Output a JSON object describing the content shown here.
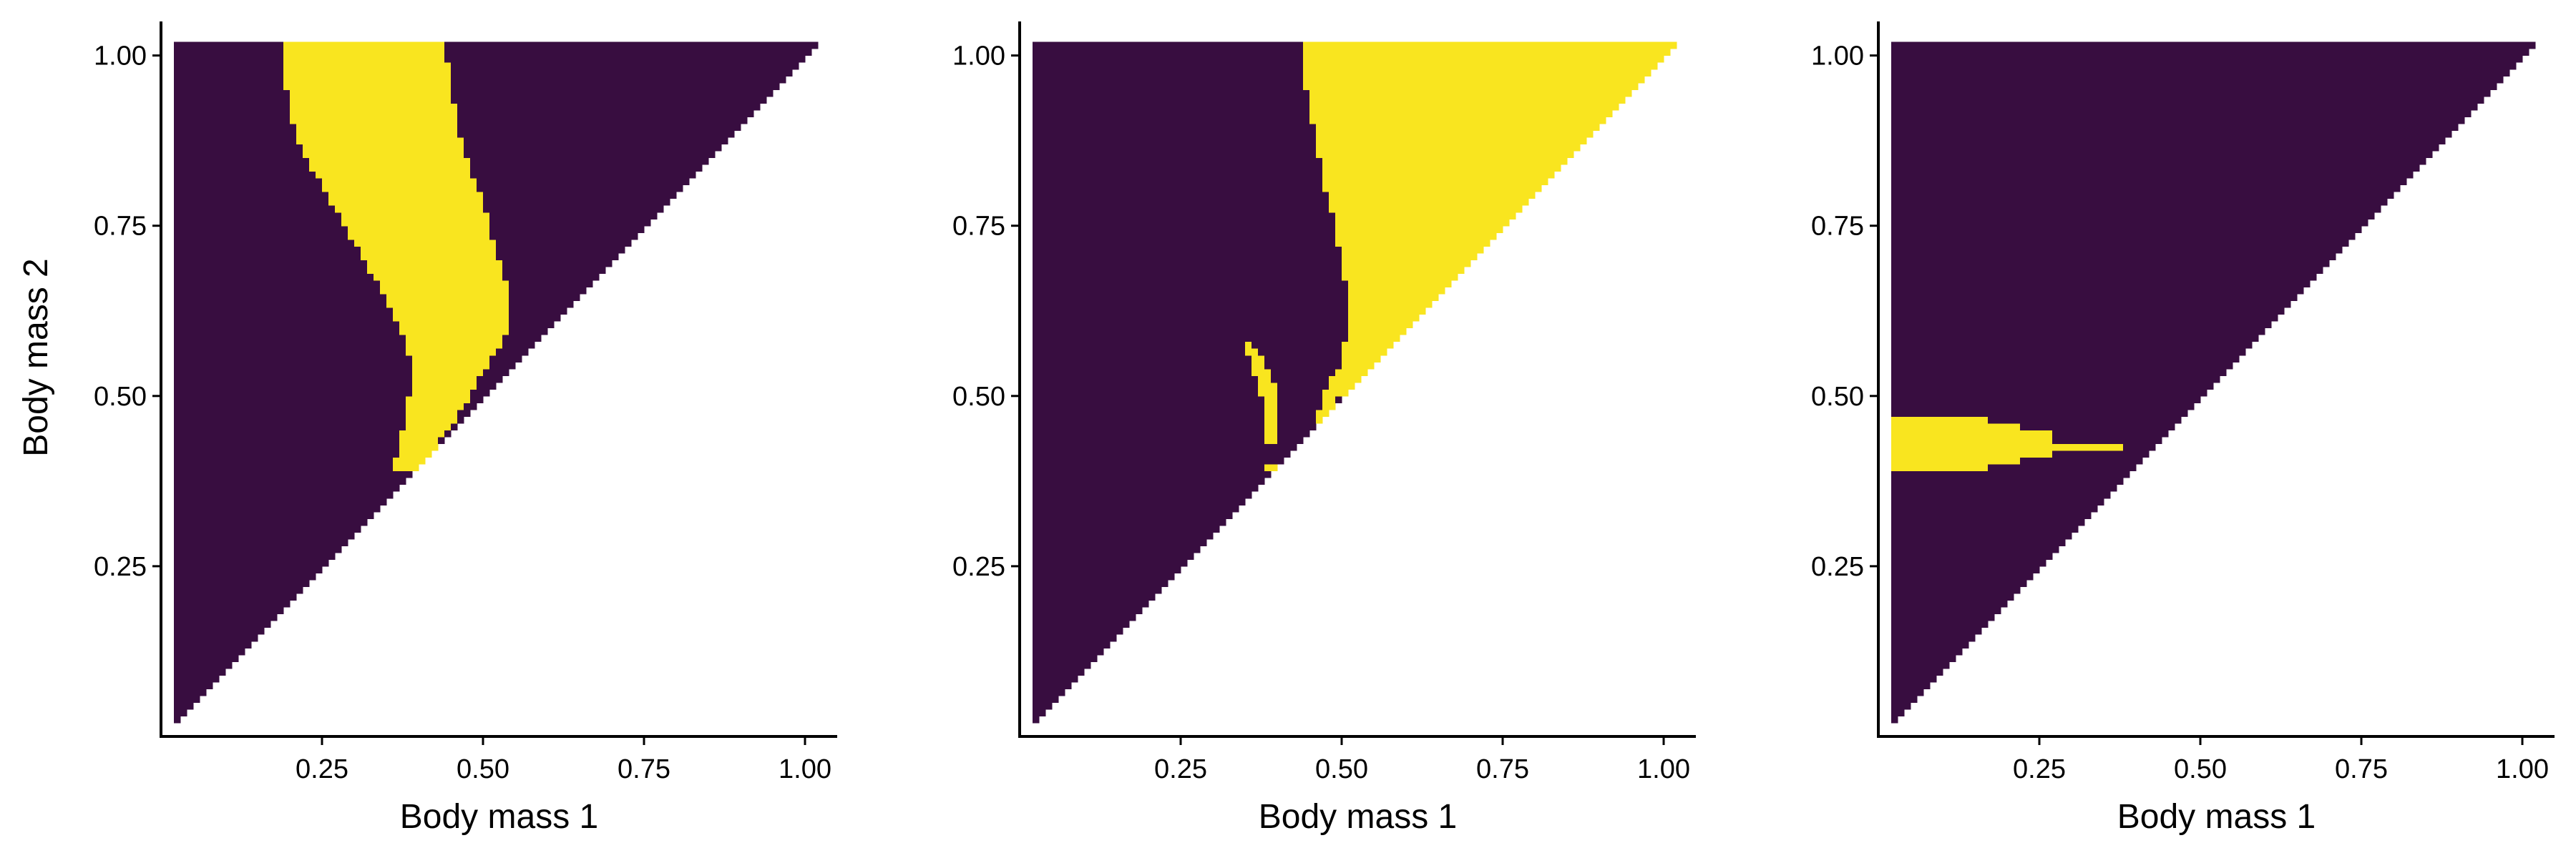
{
  "figure": {
    "background": "#ffffff",
    "axis_color": "#000000",
    "colormap": {
      "low": "#380d40",
      "high": "#f9e51f"
    }
  },
  "chart_data": [
    {
      "type": "heatmap",
      "title": "",
      "xlabel": "Body mass 1",
      "ylabel": "Body mass 2",
      "xlim": [
        0.0,
        1.05
      ],
      "ylim": [
        0.0,
        1.05
      ],
      "xticks": [
        0.25,
        0.5,
        0.75,
        1.0
      ],
      "xtick_labels": [
        "0.25",
        "0.50",
        "0.75",
        "1.00"
      ],
      "yticks": [
        0.25,
        0.5,
        0.75,
        1.0
      ],
      "ytick_labels": [
        "0.25",
        "0.50",
        "0.75",
        "1.00"
      ],
      "grid": false,
      "domain": "Body mass 2 >= Body mass 1, both from 0.02 to 1.02",
      "values": [
        0,
        1
      ],
      "background_value": 0,
      "region_value_1": {
        "y": [
          0.39,
          0.43,
          0.47,
          0.5,
          0.55,
          0.6,
          0.65,
          0.7,
          0.75,
          0.8,
          0.85,
          0.9,
          0.95,
          1.02
        ],
        "x_min": [
          0.36,
          0.37,
          0.38,
          0.385,
          0.39,
          0.37,
          0.345,
          0.315,
          0.285,
          0.255,
          0.225,
          0.205,
          0.195,
          0.185
        ],
        "x_max": [
          0.4,
          0.43,
          0.46,
          0.48,
          0.51,
          0.54,
          0.54,
          0.525,
          0.51,
          0.495,
          0.475,
          0.46,
          0.45,
          0.44
        ]
      }
    },
    {
      "type": "heatmap",
      "title": "",
      "xlabel": "Body mass 1",
      "ylabel": "",
      "xlim": [
        0.0,
        1.05
      ],
      "ylim": [
        0.0,
        1.05
      ],
      "xticks": [
        0.25,
        0.5,
        0.75,
        1.0
      ],
      "xtick_labels": [
        "0.25",
        "0.50",
        "0.75",
        "1.00"
      ],
      "yticks": [
        0.25,
        0.5,
        0.75,
        1.0
      ],
      "ytick_labels": [
        "0.25",
        "0.50",
        "0.75",
        "1.00"
      ],
      "grid": false,
      "domain": "Body mass 2 >= Body mass 1, both from 0.02 to 1.02",
      "values": [
        0,
        1
      ],
      "background_value": 0,
      "region_value_1": {
        "y": [
          0.46,
          0.5,
          0.55,
          0.6,
          0.65,
          0.7,
          0.75,
          0.8,
          0.85,
          0.9,
          0.95,
          1.02
        ],
        "x_min": [
          0.46,
          0.47,
          0.5,
          0.51,
          0.51,
          0.5,
          0.49,
          0.475,
          0.465,
          0.455,
          0.445,
          0.44
        ],
        "x_max": [
          0.46,
          0.5,
          0.55,
          0.6,
          0.65,
          0.7,
          0.75,
          0.8,
          0.85,
          0.9,
          0.95,
          1.02
        ]
      },
      "region_value_1_secondary": {
        "y": [
          0.43,
          0.47,
          0.51,
          0.55,
          0.58
        ],
        "x_min": [
          0.385,
          0.385,
          0.37,
          0.36,
          0.35
        ],
        "x_max": [
          0.4,
          0.4,
          0.4,
          0.38,
          0.36
        ]
      },
      "region_value_1_tertiary": {
        "y": [
          0.39,
          0.4
        ],
        "x_min": [
          0.385,
          0.385
        ],
        "x_max": [
          0.44,
          0.44
        ]
      }
    },
    {
      "type": "heatmap",
      "title": "",
      "xlabel": "Body mass 1",
      "ylabel": "",
      "xlim": [
        0.0,
        1.05
      ],
      "ylim": [
        0.0,
        1.05
      ],
      "xticks": [
        0.25,
        0.5,
        0.75,
        1.0
      ],
      "xtick_labels": [
        "0.25",
        "0.50",
        "0.75",
        "1.00"
      ],
      "yticks": [
        0.25,
        0.5,
        0.75,
        1.0
      ],
      "ytick_labels": [
        "0.25",
        "0.50",
        "0.75",
        "1.00"
      ],
      "grid": false,
      "domain": "Body mass 2 >= Body mass 1, both from 0.02 to 1.02",
      "values": [
        0,
        1
      ],
      "background_value": 0,
      "region_value_1": {
        "x": [
          0.02,
          0.09,
          0.09,
          0.17,
          0.17,
          0.22,
          0.22,
          0.27,
          0.27,
          0.38
        ],
        "y_low": [
          0.39,
          0.39,
          0.395,
          0.395,
          0.405,
          0.405,
          0.415,
          0.415,
          0.425,
          0.425
        ],
        "y_high": [
          0.47,
          0.47,
          0.465,
          0.465,
          0.455,
          0.455,
          0.445,
          0.445,
          0.435,
          0.435
        ]
      }
    }
  ]
}
